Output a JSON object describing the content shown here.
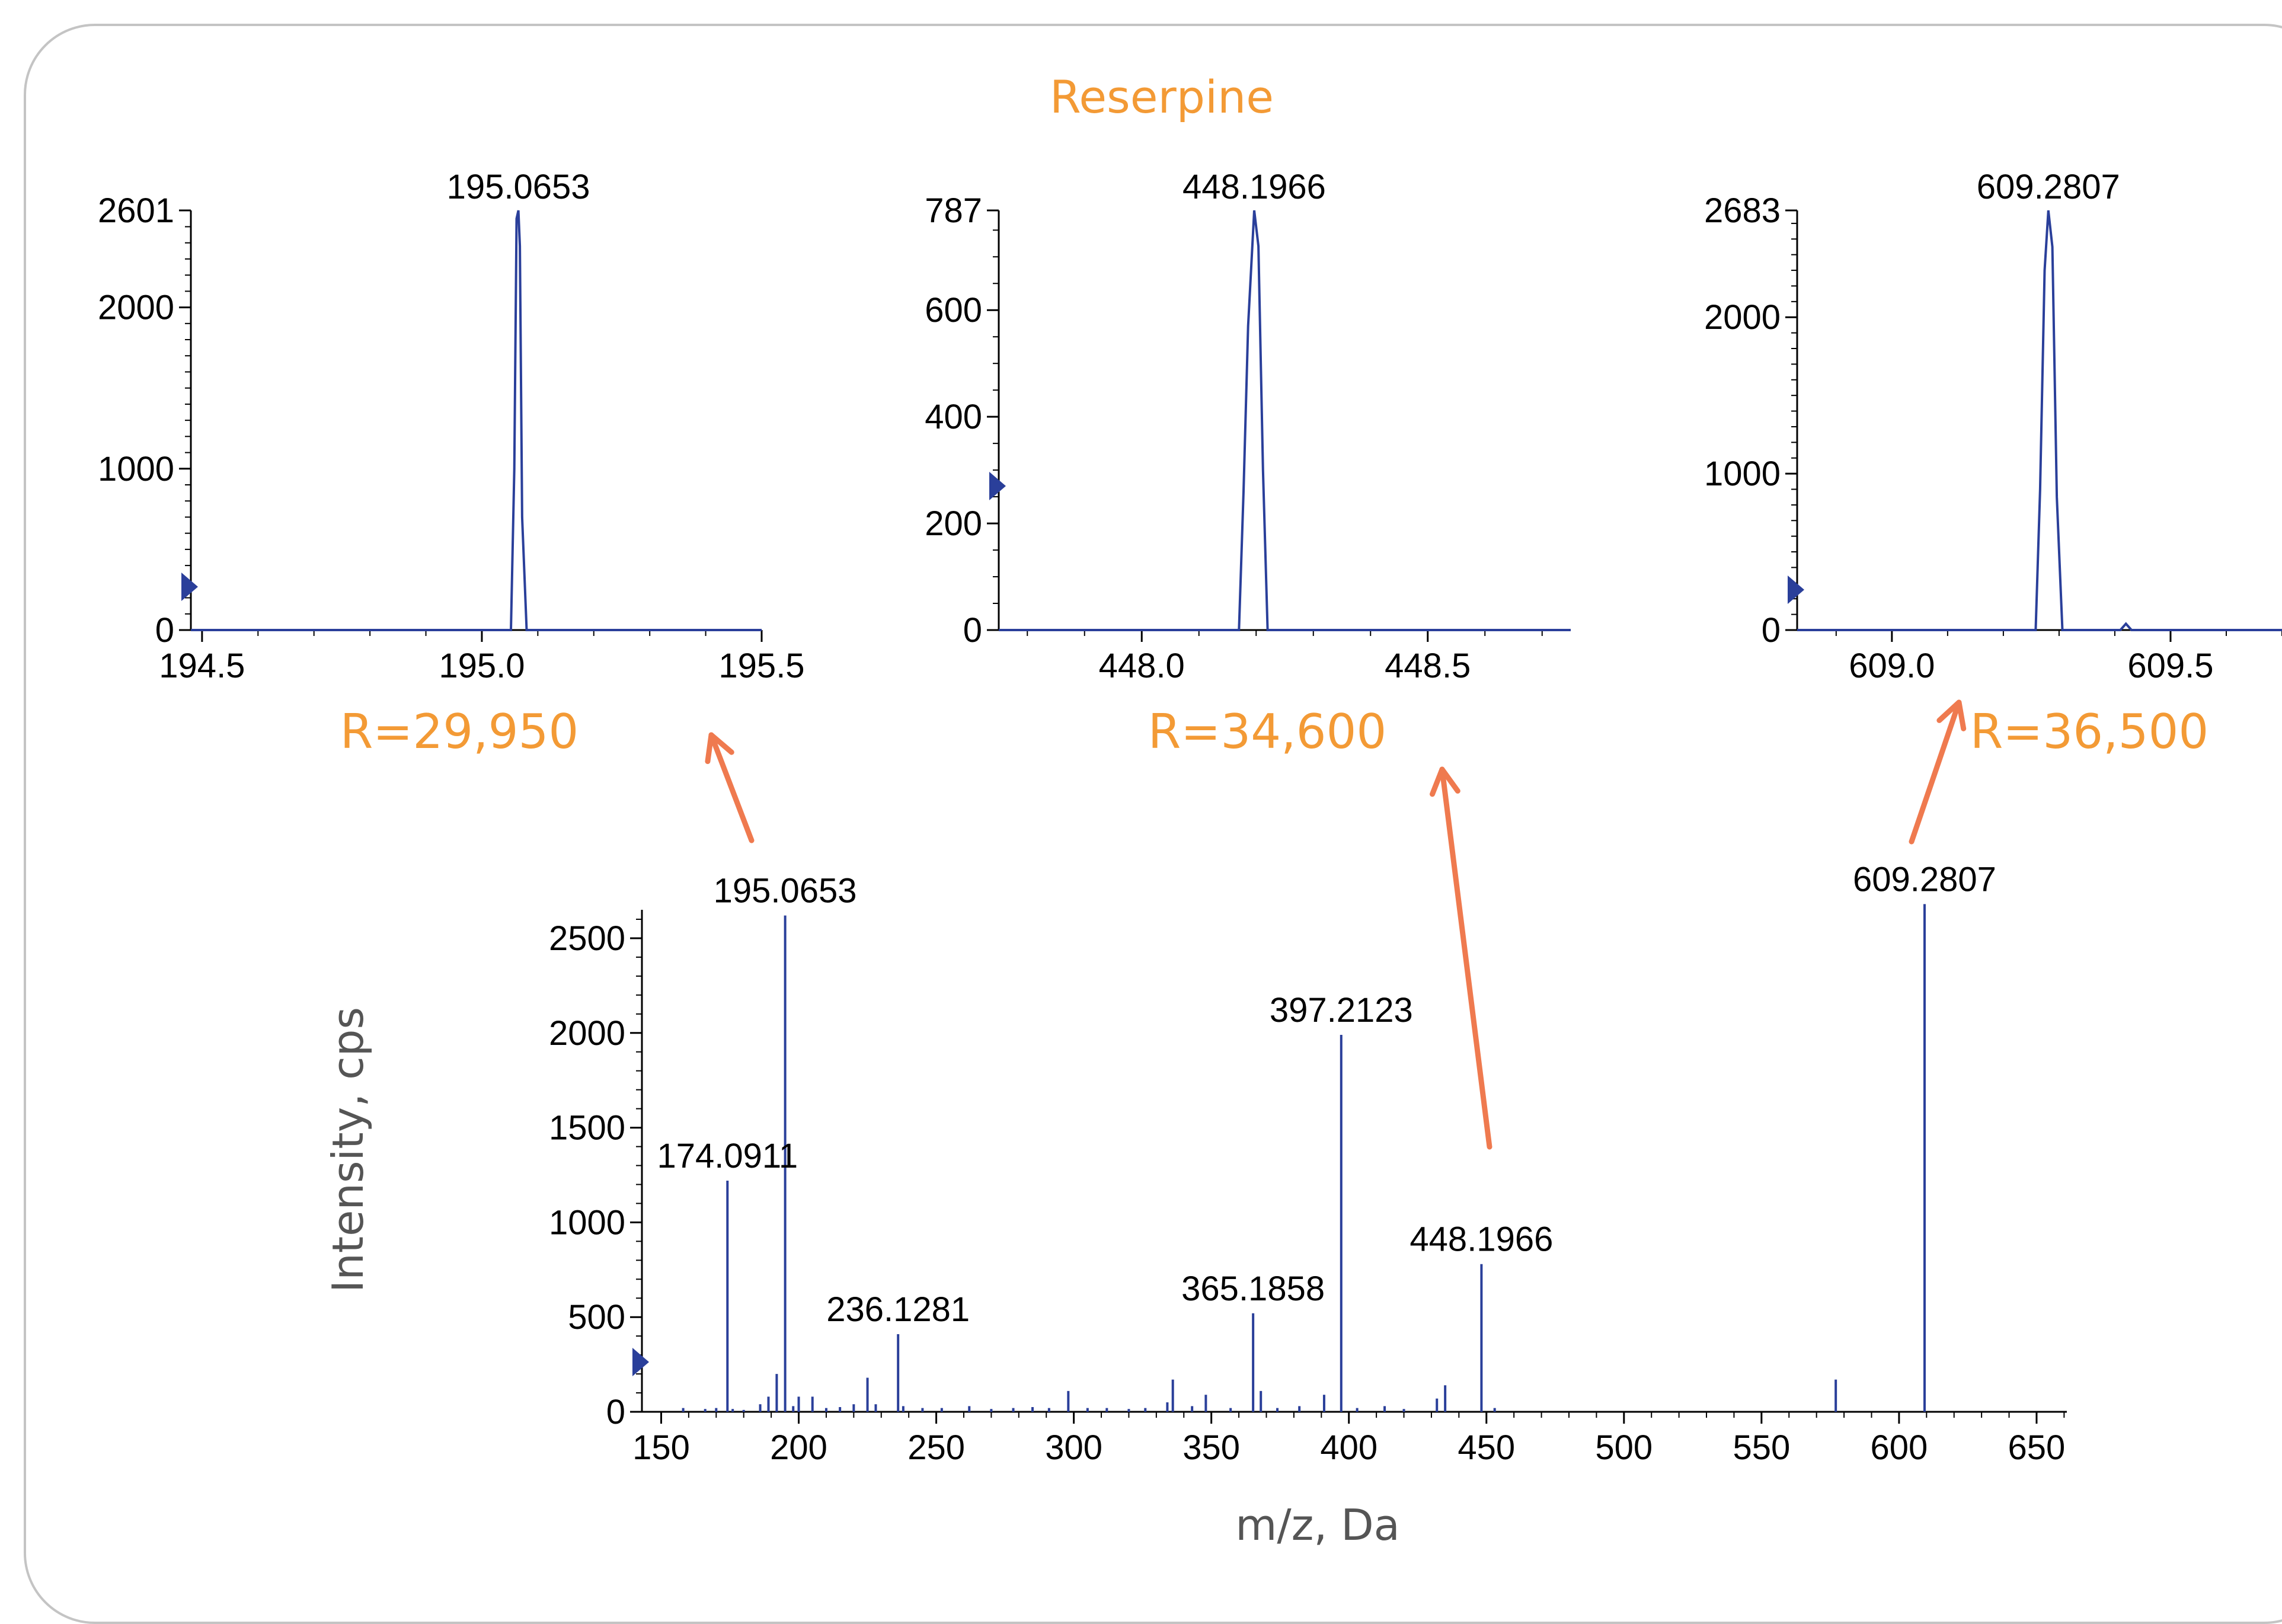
{
  "title": "Reserpine",
  "colors": {
    "accent": "#f39a35",
    "arrow": "#ef7a4f",
    "trace": "#2a3f9a",
    "frame": "#c4c4c4"
  },
  "resolutions": [
    "R=29,950",
    "R=34,600",
    "R=36,500"
  ],
  "chart_data": [
    {
      "type": "line",
      "title": "",
      "xlabel": "",
      "ylabel": "",
      "xlim": [
        194.48,
        195.5
      ],
      "ylim": [
        0,
        2601
      ],
      "x_ticks": [
        "194.5",
        "195.0",
        "195.5"
      ],
      "y_ticks": [
        "0",
        "1000",
        "2000",
        "2601"
      ],
      "peak_label": "195.0653",
      "series": [
        {
          "x": [
            194.48,
            195.052,
            195.058,
            195.062,
            195.0653,
            195.068,
            195.072,
            195.08,
            195.5
          ],
          "values": [
            0,
            0,
            1000,
            2550,
            2601,
            2380,
            700,
            0,
            0
          ]
        }
      ]
    },
    {
      "type": "line",
      "title": "",
      "xlabel": "",
      "ylabel": "",
      "xlim": [
        447.75,
        448.75
      ],
      "ylim": [
        0,
        787
      ],
      "x_ticks": [
        "448.0",
        "448.5"
      ],
      "y_ticks": [
        "0",
        "200",
        "400",
        "600",
        "787"
      ],
      "peak_label": "448.1966",
      "series": [
        {
          "x": [
            447.75,
            448.17,
            448.178,
            448.186,
            448.1966,
            448.204,
            448.212,
            448.22,
            448.75
          ],
          "values": [
            0,
            0,
            260,
            570,
            787,
            720,
            300,
            0,
            0
          ]
        }
      ]
    },
    {
      "type": "line",
      "title": "",
      "xlabel": "",
      "ylabel": "",
      "xlim": [
        608.83,
        609.7
      ],
      "ylim": [
        0,
        2683
      ],
      "x_ticks": [
        "609.0",
        "609.5"
      ],
      "y_ticks": [
        "0",
        "1000",
        "2000",
        "2683"
      ],
      "peak_label": "609.2807",
      "series": [
        {
          "x": [
            608.83,
            609.258,
            609.266,
            609.274,
            609.2807,
            609.288,
            609.296,
            609.306,
            609.41,
            609.42,
            609.43,
            609.7
          ],
          "values": [
            0,
            0,
            900,
            2300,
            2683,
            2450,
            850,
            0,
            0,
            40,
            0,
            0
          ]
        }
      ]
    },
    {
      "type": "bar",
      "title": "",
      "xlabel": "m/z, Da",
      "ylabel": "Intensity, cps",
      "xlim": [
        143,
        661
      ],
      "ylim": [
        0,
        2650
      ],
      "x_ticks": [
        "150",
        "200",
        "250",
        "300",
        "350",
        "400",
        "450",
        "500",
        "550",
        "600",
        "650"
      ],
      "y_ticks": [
        "0",
        "500",
        "1000",
        "1500",
        "2000",
        "2500"
      ],
      "series": [
        {
          "x": [
            158,
            166,
            170,
            174.0911,
            176,
            180,
            186,
            189,
            192,
            195.0653,
            198,
            200,
            205,
            210,
            215,
            220,
            225,
            228,
            236.1281,
            238,
            245,
            252,
            262,
            270,
            278,
            285,
            291,
            298,
            305,
            312,
            320,
            326,
            334,
            336,
            343,
            348,
            357,
            365.1858,
            368,
            374,
            382,
            391,
            397.2123,
            403,
            413,
            420,
            432,
            435,
            448.1966,
            453,
            577,
            609.2807
          ],
          "values": [
            20,
            15,
            20,
            1220,
            15,
            10,
            40,
            80,
            200,
            2620,
            30,
            80,
            80,
            20,
            25,
            40,
            180,
            40,
            410,
            30,
            20,
            20,
            30,
            15,
            20,
            25,
            20,
            110,
            20,
            20,
            15,
            20,
            50,
            170,
            30,
            90,
            20,
            520,
            110,
            20,
            30,
            90,
            1990,
            20,
            30,
            15,
            70,
            140,
            780,
            20,
            170,
            2680
          ]
        }
      ],
      "labels": [
        {
          "x": 174.0911,
          "text": "174.0911"
        },
        {
          "x": 195.0653,
          "text": "195.0653"
        },
        {
          "x": 236.1281,
          "text": "236.1281"
        },
        {
          "x": 365.1858,
          "text": "365.1858"
        },
        {
          "x": 397.2123,
          "text": "397.2123"
        },
        {
          "x": 448.1966,
          "text": "448.1966"
        },
        {
          "x": 609.2807,
          "text": "609.2807"
        }
      ]
    }
  ]
}
